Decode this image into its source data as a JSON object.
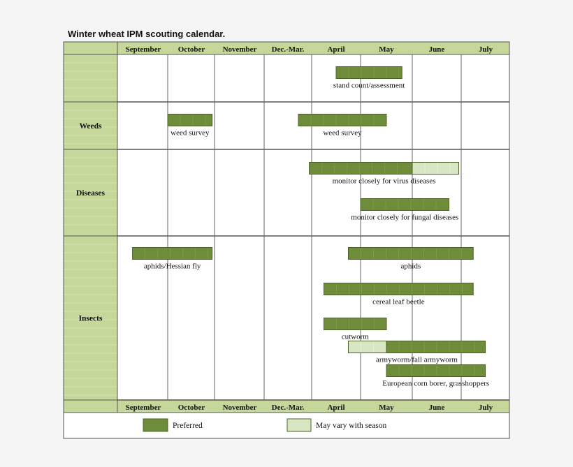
{
  "chart_data": {
    "type": "gantt",
    "title": "Winter wheat IPM scouting calendar.",
    "months": [
      "September",
      "October",
      "November",
      "Dec.-Mar.",
      "April",
      "May",
      "June",
      "July"
    ],
    "categories": [
      {
        "name": "",
        "rows": 1
      },
      {
        "name": "Weeds",
        "rows": 1
      },
      {
        "name": "Diseases",
        "rows": 2
      },
      {
        "name": "Insects",
        "rows": 6
      }
    ],
    "tasks": [
      {
        "label": "stand count/assessment",
        "category": 0,
        "row": 0,
        "segments": [
          {
            "start": 4.5,
            "end": 5.8,
            "kind": "preferred"
          }
        ]
      },
      {
        "label": "weed survey",
        "category": 1,
        "row": 0,
        "segments": [
          {
            "start": 1.0,
            "end": 1.95,
            "kind": "preferred"
          }
        ]
      },
      {
        "label": "weed survey",
        "category": 1,
        "row": 0,
        "segments": [
          {
            "start": 3.72,
            "end": 5.5,
            "kind": "preferred"
          }
        ]
      },
      {
        "label": "monitor closely for virus diseases",
        "category": 2,
        "row": 0,
        "segments": [
          {
            "start": 3.95,
            "end": 6.0,
            "kind": "preferred"
          },
          {
            "start": 6.0,
            "end": 6.95,
            "kind": "vary"
          }
        ]
      },
      {
        "label": "monitor closely for fungal diseases",
        "category": 2,
        "row": 1,
        "segments": [
          {
            "start": 5.0,
            "end": 6.75,
            "kind": "preferred"
          }
        ]
      },
      {
        "label": "aphids/Hessian fly",
        "category": 3,
        "row": 0,
        "segments": [
          {
            "start": 0.3,
            "end": 1.95,
            "kind": "preferred"
          }
        ]
      },
      {
        "label": "aphids",
        "category": 3,
        "row": 0,
        "segments": [
          {
            "start": 4.75,
            "end": 7.25,
            "kind": "preferred"
          }
        ]
      },
      {
        "label": "cereal leaf beetle",
        "category": 3,
        "row": 1,
        "segments": [
          {
            "start": 4.25,
            "end": 7.25,
            "kind": "preferred"
          }
        ]
      },
      {
        "label": "cutworm",
        "category": 3,
        "row": 2,
        "segments": [
          {
            "start": 4.25,
            "end": 5.5,
            "kind": "preferred"
          }
        ]
      },
      {
        "label": "armyworm/fall armyworm",
        "category": 3,
        "row": 3,
        "segments": [
          {
            "start": 4.75,
            "end": 5.5,
            "kind": "vary"
          },
          {
            "start": 5.5,
            "end": 7.5,
            "kind": "preferred"
          }
        ]
      },
      {
        "label": "European corn borer, grasshoppers",
        "category": 3,
        "row": 4,
        "segments": [
          {
            "start": 5.5,
            "end": 7.5,
            "kind": "preferred"
          }
        ]
      }
    ],
    "legend": [
      {
        "label": "Preferred",
        "kind": "preferred"
      },
      {
        "label": "May vary with season",
        "kind": "vary"
      }
    ],
    "legend_placement": "bottom",
    "grid": true
  },
  "colors": {
    "preferred": "#6e8c3a",
    "vary": "#d9e6c4",
    "header_fill": "#c5d89a",
    "category_fill": "#c5d89a",
    "border": "#555555"
  }
}
